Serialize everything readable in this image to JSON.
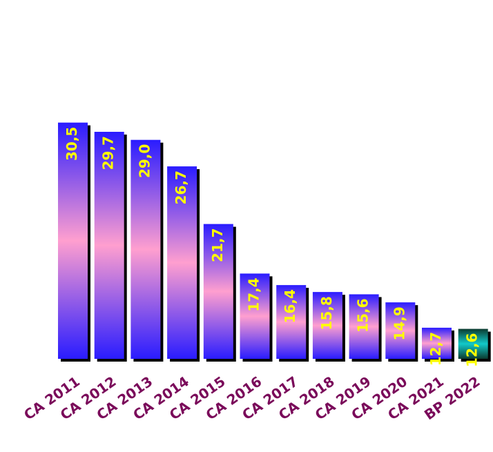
{
  "chart_data": {
    "type": "bar",
    "categories": [
      "CA 2011",
      "CA 2012",
      "CA 2013",
      "CA 2014",
      "CA 2015",
      "CA 2016",
      "CA 2017",
      "CA 2018",
      "CA 2019",
      "CA 2020",
      "CA 2021",
      "BP 2022"
    ],
    "values": [
      30.5,
      29.7,
      29.0,
      26.7,
      21.7,
      17.4,
      16.4,
      15.8,
      15.6,
      14.9,
      12.7,
      12.6
    ],
    "value_labels": [
      "30,5",
      "29,7",
      "29,0",
      "26,7",
      "21,7",
      "17,4",
      "16,4",
      "15,8",
      "15,6",
      "14,9",
      "12,7",
      "12,6"
    ],
    "highlight_index": 11,
    "ylim": [
      10,
      30.5
    ],
    "title": "",
    "xlabel": "",
    "ylabel": "",
    "grid": false,
    "legend": "none"
  },
  "colors": {
    "bar_edge": "#2a1cff",
    "bar_mid": "#ff9fcf",
    "highlight_edge": "#0b3a2e",
    "highlight_mid": "#12c9c9",
    "value_label": "#ffff00",
    "category_label": "#7a0a5a",
    "shadow": "#000000"
  }
}
